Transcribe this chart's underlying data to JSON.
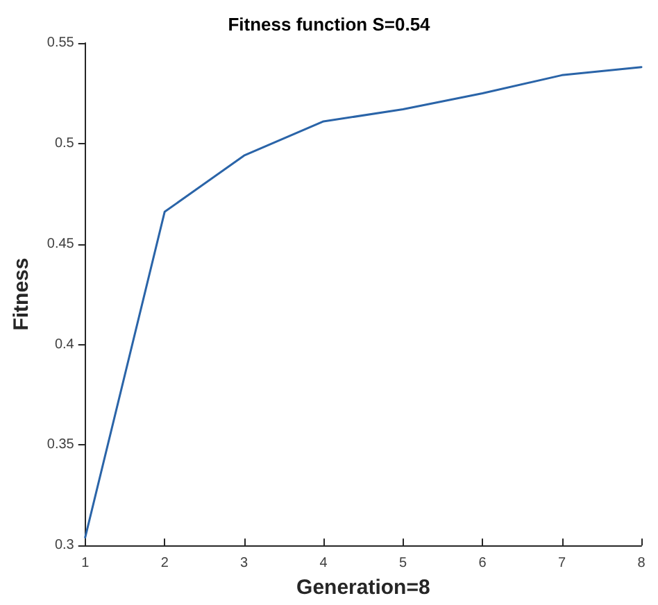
{
  "chart_data": {
    "type": "line",
    "title": "Fitness function S=0.54",
    "xlabel": "Generation=8",
    "ylabel": "Fitness",
    "x": [
      1,
      2,
      3,
      4,
      5,
      6,
      7,
      8
    ],
    "series": [
      {
        "color": "#2a64a8",
        "values": [
          0.304,
          0.466,
          0.494,
          0.511,
          0.517,
          0.525,
          0.534,
          0.538
        ]
      }
    ],
    "xlim": [
      1,
      8
    ],
    "xticks": [
      1,
      2,
      3,
      4,
      5,
      6,
      7,
      8
    ],
    "ylim": [
      0.3,
      0.55
    ],
    "yticks": [
      0.3,
      0.35,
      0.4,
      0.45,
      0.5,
      0.55
    ],
    "grid": false,
    "marker": "none",
    "line_style": "solid"
  }
}
